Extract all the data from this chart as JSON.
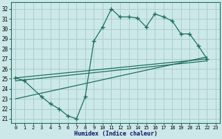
{
  "bg_color": "#cce8e8",
  "grid_color": "#aacece",
  "line_color": "#1a6e5e",
  "xlabel": "Humidex (Indice chaleur)",
  "ylim": [
    20.6,
    32.7
  ],
  "xlim": [
    -0.5,
    23.5
  ],
  "yticks": [
    21,
    22,
    23,
    24,
    25,
    26,
    27,
    28,
    29,
    30,
    31,
    32
  ],
  "xticks": [
    0,
    1,
    2,
    3,
    4,
    5,
    6,
    7,
    8,
    9,
    10,
    11,
    12,
    13,
    14,
    15,
    16,
    17,
    18,
    19,
    20,
    21,
    22,
    23
  ],
  "main_x": [
    0,
    1,
    3,
    4,
    5,
    6,
    7,
    8,
    9,
    10,
    11,
    12,
    13,
    14,
    15,
    16,
    17,
    18,
    19,
    20,
    21,
    22
  ],
  "main_y": [
    25.1,
    24.8,
    23.2,
    22.5,
    22.0,
    21.3,
    21.0,
    23.2,
    28.8,
    30.2,
    32.0,
    31.2,
    31.2,
    31.1,
    30.2,
    31.5,
    31.2,
    30.8,
    29.5,
    29.5,
    28.3,
    27.0
  ],
  "line1_x": [
    0,
    22
  ],
  "line1_y": [
    25.1,
    27.0
  ],
  "line2_x": [
    0,
    22
  ],
  "line2_y": [
    24.8,
    26.8
  ],
  "line3_x": [
    0,
    22
  ],
  "line3_y": [
    23.0,
    27.2
  ]
}
